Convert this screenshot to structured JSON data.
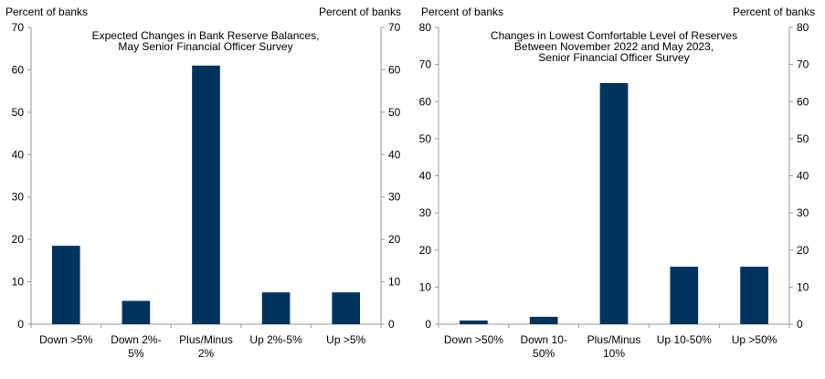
{
  "chart_data": [
    {
      "type": "bar",
      "title": "Expected Changes in Bank Reserve Balances,\nMay Senior Financial Officer Survey",
      "ylabel_left": "Percent of banks",
      "ylabel_right": "Percent of banks",
      "categories": [
        "Down >5%",
        "Down 2%-\n5%",
        "Plus/Minus\n2%",
        "Up 2%-5%",
        "Up >5%"
      ],
      "values": [
        18.5,
        5.5,
        61,
        7.5,
        7.5
      ],
      "ylim": [
        0,
        70
      ],
      "yticks": [
        0,
        10,
        20,
        30,
        40,
        50,
        60,
        70
      ],
      "bar_color": "#00345F",
      "grid": false
    },
    {
      "type": "bar",
      "title": "Changes in Lowest Comfortable Level of Reserves\nBetween November 2022 and May 2023,\nSenior Financial Officer Survey",
      "ylabel_left": "Percent of banks",
      "ylabel_right": "Percent of banks",
      "categories": [
        "Down >50%",
        "Down 10-\n50%",
        "Plus/Minus\n10%",
        "Up 10-50%",
        "Up >50%"
      ],
      "values": [
        1,
        2,
        65,
        15.5,
        15.5
      ],
      "ylim": [
        0,
        80
      ],
      "yticks": [
        0,
        10,
        20,
        30,
        40,
        50,
        60,
        70,
        80
      ],
      "bar_color": "#00345F",
      "grid": false
    }
  ]
}
